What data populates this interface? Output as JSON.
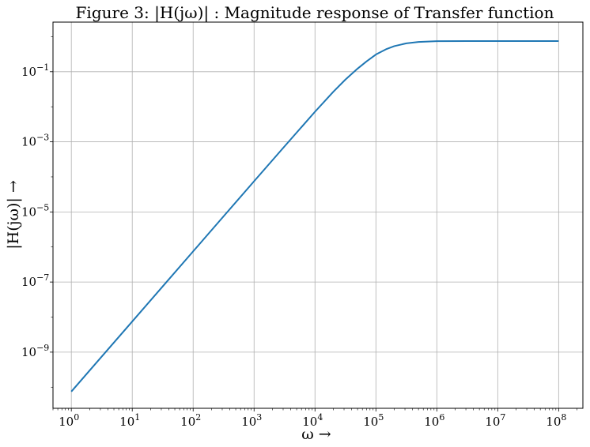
{
  "chart_data": {
    "type": "line",
    "title": "Figure 3: |H(jω)| : Magnitude response of Transfer function",
    "xlabel": "ω →",
    "ylabel": "|H(jω)| →",
    "x_scale": "log",
    "y_scale": "log",
    "xlim": [
      0.5,
      250000000.0
    ],
    "ylim": [
      2.5e-11,
      2.6
    ],
    "x_ticks": [
      {
        "value": 1,
        "base": "10",
        "exp": "0"
      },
      {
        "value": 10,
        "base": "10",
        "exp": "1"
      },
      {
        "value": 100,
        "base": "10",
        "exp": "2"
      },
      {
        "value": 1000,
        "base": "10",
        "exp": "3"
      },
      {
        "value": 10000,
        "base": "10",
        "exp": "4"
      },
      {
        "value": 100000,
        "base": "10",
        "exp": "5"
      },
      {
        "value": 1000000,
        "base": "10",
        "exp": "6"
      },
      {
        "value": 10000000,
        "base": "10",
        "exp": "7"
      },
      {
        "value": 100000000,
        "base": "10",
        "exp": "8"
      }
    ],
    "y_ticks": [
      {
        "value": 1e-09,
        "base": "10",
        "exp": "−9"
      },
      {
        "value": 1e-07,
        "base": "10",
        "exp": "−7"
      },
      {
        "value": 1e-05,
        "base": "10",
        "exp": "−5"
      },
      {
        "value": 0.001,
        "base": "10",
        "exp": "−3"
      },
      {
        "value": 0.1,
        "base": "10",
        "exp": "−1"
      }
    ],
    "grid": true,
    "series": [
      {
        "color": "#1f77b4",
        "x": [
          1,
          3.16,
          10,
          31.6,
          100,
          316,
          1000,
          3160,
          10000,
          20000,
          31600,
          50000,
          70000,
          100000,
          150000,
          200000,
          316000,
          500000,
          1000000,
          3160000,
          10000000,
          31600000,
          100000000
        ],
        "y": [
          7.5e-11,
          7.5e-10,
          7.5e-09,
          7.5e-08,
          7.5e-07,
          7.5e-06,
          7.5e-05,
          0.00074,
          0.0072,
          0.0268,
          0.0597,
          0.1223,
          0.1962,
          0.3096,
          0.4448,
          0.5365,
          0.6451,
          0.7043,
          0.7418,
          0.7495,
          0.75,
          0.75,
          0.75
        ]
      }
    ]
  }
}
